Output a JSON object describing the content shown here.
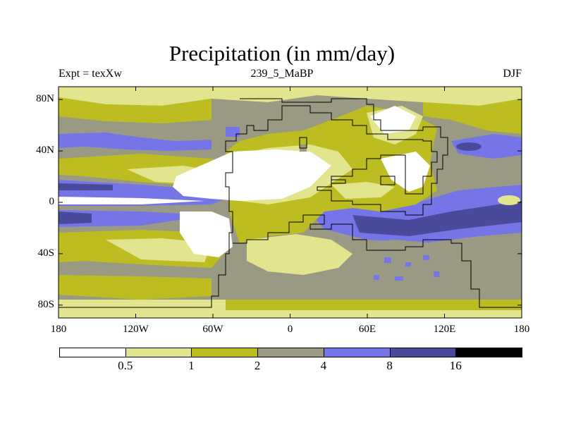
{
  "title": "Precipitation (in mm/day)",
  "subtitle": {
    "left": "Expt = texXw",
    "center": "239_5_MaBP",
    "right": "DJF"
  },
  "axes": {
    "lat_labels": [
      "80N",
      "40N",
      "0",
      "40S",
      "80S"
    ],
    "lon_labels": [
      "180",
      "120W",
      "60W",
      "0",
      "60E",
      "120E",
      "180"
    ],
    "lat_values": [
      80,
      40,
      0,
      -40,
      -80
    ],
    "lon_values": [
      -180,
      -120,
      -60,
      0,
      60,
      120,
      180
    ],
    "lat_range": [
      -90,
      90
    ],
    "lon_range": [
      -180,
      180
    ]
  },
  "colorbar": {
    "colors": [
      "#ffffff",
      "#e3e48e",
      "#bdbd22",
      "#9a9a84",
      "#7575e8",
      "#4a4a9c",
      "#000000"
    ],
    "labels": [
      "0.5",
      "1",
      "2",
      "4",
      "8",
      "16"
    ],
    "levels": [
      0.5,
      1,
      2,
      4,
      8,
      16
    ]
  }
}
